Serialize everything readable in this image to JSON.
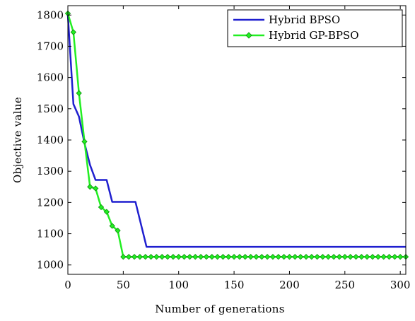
{
  "chart_data": {
    "type": "line",
    "title": "",
    "xlabel": "Number of generations",
    "ylabel": "Objective value",
    "xlim": [
      0,
      305
    ],
    "ylim": [
      970,
      1830
    ],
    "xticks": [
      0,
      50,
      100,
      150,
      200,
      250,
      300
    ],
    "yticks": [
      1000,
      1100,
      1200,
      1300,
      1400,
      1500,
      1600,
      1700,
      1800
    ],
    "grid": false,
    "legend_position": "top-right",
    "series": [
      {
        "name": "Hybrid BPSO",
        "color": "#1f1fcf",
        "marker": "none",
        "points": [
          [
            0,
            1800
          ],
          [
            5,
            1515
          ],
          [
            10,
            1475
          ],
          [
            15,
            1390
          ],
          [
            20,
            1320
          ],
          [
            25,
            1272
          ],
          [
            35,
            1272
          ],
          [
            40,
            1202
          ],
          [
            61,
            1202
          ],
          [
            71,
            1058
          ],
          [
            305,
            1058
          ]
        ]
      },
      {
        "name": "Hybrid GP-BPSO",
        "color": "#22ee22",
        "marker": "diamond",
        "points": [
          [
            0,
            1805
          ],
          [
            5,
            1745
          ],
          [
            10,
            1550
          ],
          [
            15,
            1395
          ],
          [
            20,
            1250
          ],
          [
            25,
            1245
          ],
          [
            30,
            1185
          ],
          [
            35,
            1170
          ],
          [
            40,
            1125
          ],
          [
            45,
            1110
          ],
          [
            50,
            1026
          ],
          [
            55,
            1026
          ],
          [
            60,
            1026
          ],
          [
            65,
            1026
          ],
          [
            70,
            1026
          ],
          [
            75,
            1026
          ],
          [
            80,
            1026
          ],
          [
            85,
            1026
          ],
          [
            90,
            1026
          ],
          [
            95,
            1026
          ],
          [
            100,
            1026
          ],
          [
            105,
            1026
          ],
          [
            110,
            1026
          ],
          [
            115,
            1026
          ],
          [
            120,
            1026
          ],
          [
            125,
            1026
          ],
          [
            130,
            1026
          ],
          [
            135,
            1026
          ],
          [
            140,
            1026
          ],
          [
            145,
            1026
          ],
          [
            150,
            1026
          ],
          [
            155,
            1026
          ],
          [
            160,
            1026
          ],
          [
            165,
            1026
          ],
          [
            170,
            1026
          ],
          [
            175,
            1026
          ],
          [
            180,
            1026
          ],
          [
            185,
            1026
          ],
          [
            190,
            1026
          ],
          [
            195,
            1026
          ],
          [
            200,
            1026
          ],
          [
            205,
            1026
          ],
          [
            210,
            1026
          ],
          [
            215,
            1026
          ],
          [
            220,
            1026
          ],
          [
            225,
            1026
          ],
          [
            230,
            1026
          ],
          [
            235,
            1026
          ],
          [
            240,
            1026
          ],
          [
            245,
            1026
          ],
          [
            250,
            1026
          ],
          [
            255,
            1026
          ],
          [
            260,
            1026
          ],
          [
            265,
            1026
          ],
          [
            270,
            1026
          ],
          [
            275,
            1026
          ],
          [
            280,
            1026
          ],
          [
            285,
            1026
          ],
          [
            290,
            1026
          ],
          [
            295,
            1026
          ],
          [
            300,
            1026
          ],
          [
            305,
            1026
          ]
        ]
      }
    ]
  }
}
